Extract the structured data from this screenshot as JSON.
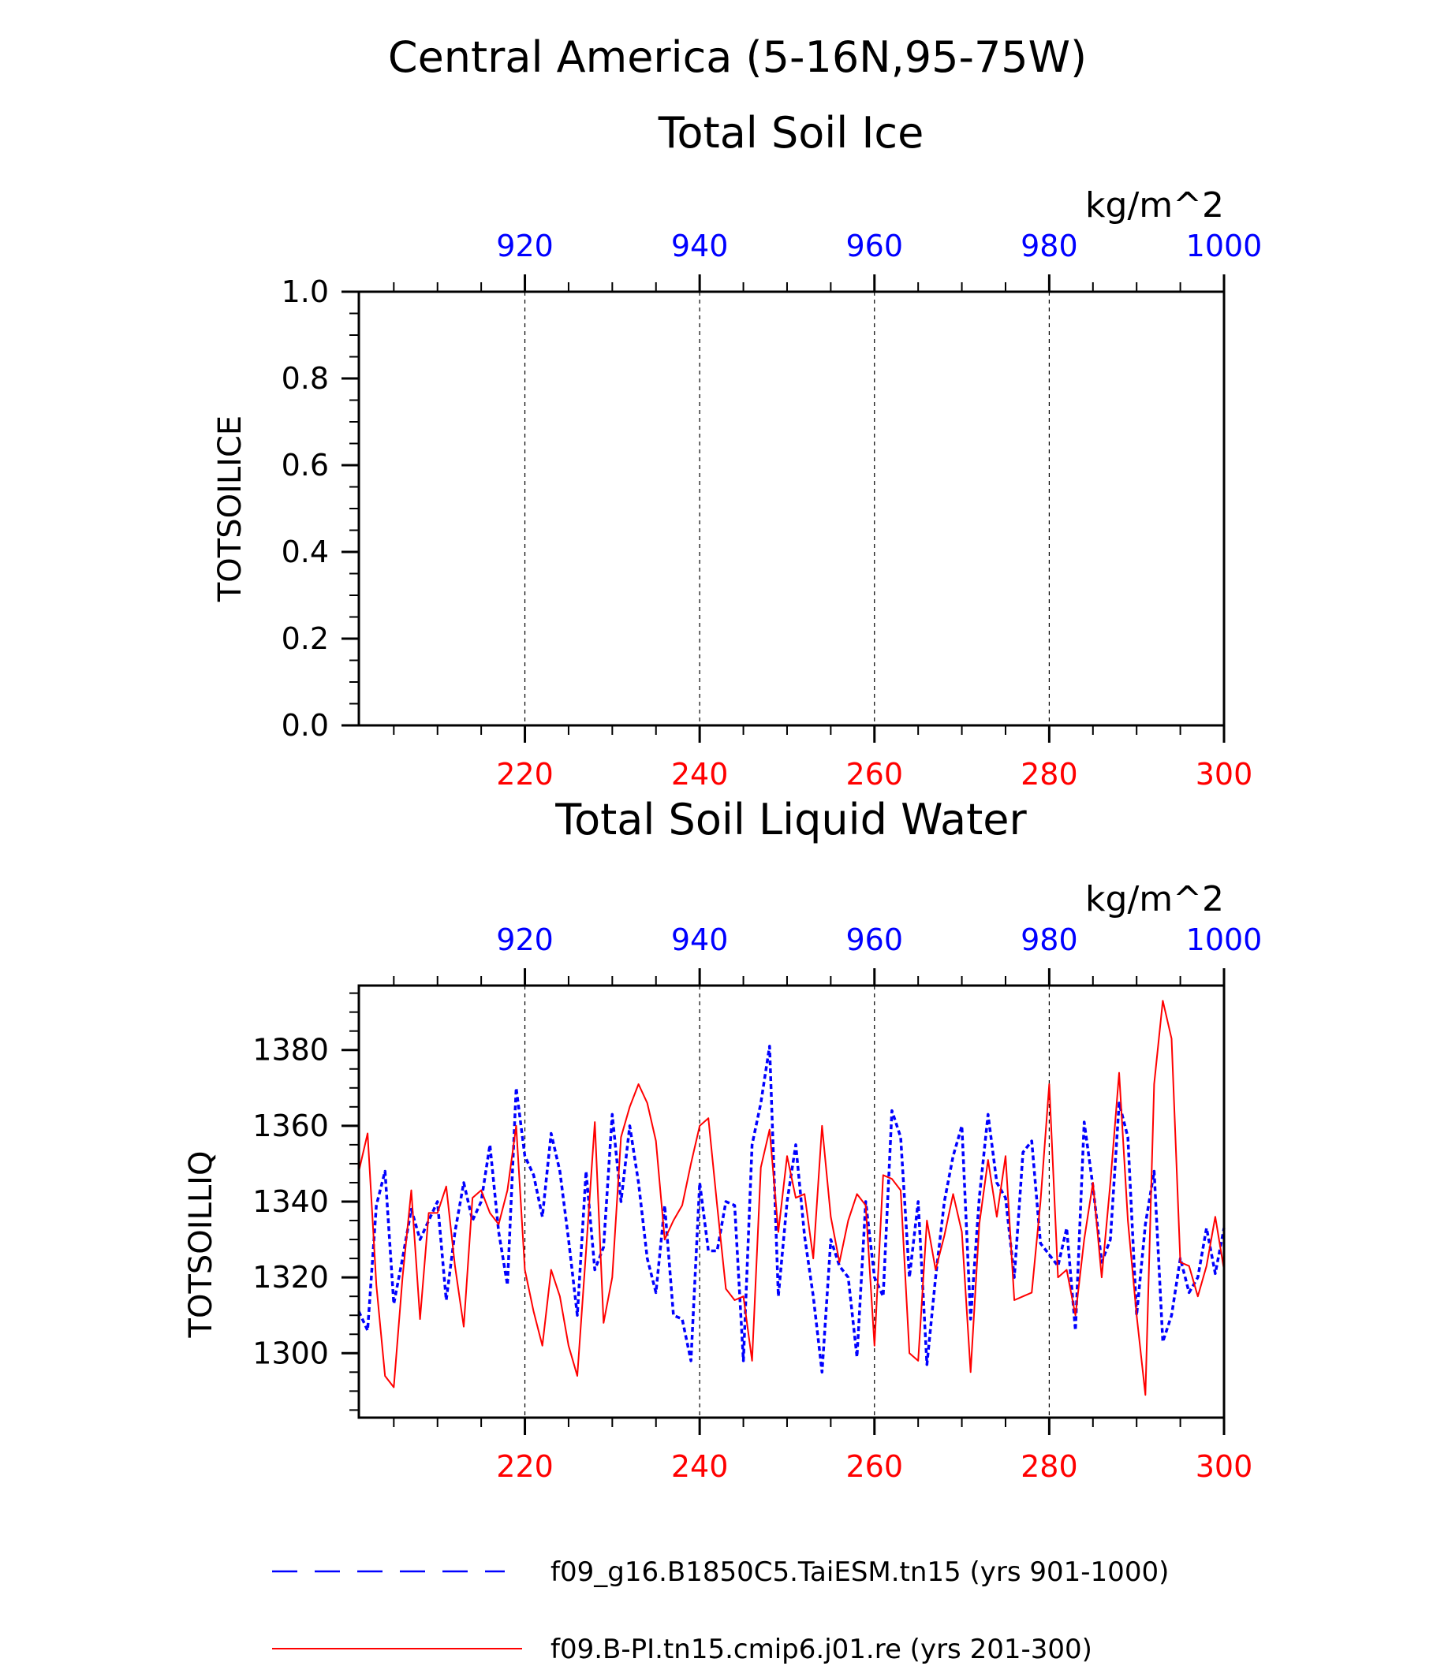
{
  "title": "Central America (5-16N,95-75W)",
  "chart_data": [
    {
      "type": "line",
      "title": "Total Soil Ice",
      "ylabel": "TOTSOILICE",
      "units": "kg/m^2",
      "ylim": [
        0,
        1
      ],
      "yticks": [
        "0.0",
        "0.2",
        "0.4",
        "0.6",
        "0.8",
        "1.0"
      ],
      "bottom_axis": {
        "range": [
          201,
          300
        ],
        "ticks": [
          "220",
          "240",
          "260",
          "280",
          "300"
        ],
        "color": "#ff0000"
      },
      "top_axis": {
        "range": [
          901,
          1000
        ],
        "ticks": [
          "920",
          "940",
          "960",
          "980",
          "1000"
        ],
        "color": "#0000ff"
      },
      "grid": "dashed vertical at major ticks",
      "series": []
    },
    {
      "type": "line",
      "title": "Total Soil Liquid Water",
      "ylabel": "TOTSOILLIQ",
      "units": "kg/m^2",
      "ylim": [
        1283,
        1397
      ],
      "yticks": [
        "1300",
        "1320",
        "1340",
        "1360",
        "1380"
      ],
      "bottom_axis": {
        "range": [
          201,
          300
        ],
        "ticks": [
          "220",
          "240",
          "260",
          "280",
          "300"
        ],
        "color": "#ff0000"
      },
      "top_axis": {
        "range": [
          901,
          1000
        ],
        "ticks": [
          "920",
          "940",
          "960",
          "980",
          "1000"
        ],
        "color": "#0000ff"
      },
      "grid": "dashed vertical at major ticks",
      "series": [
        {
          "name": "f09_g16.B1850C5.TaiESM.tn15 (yrs 901-1000)",
          "color": "#0000ff",
          "style": "dotted",
          "x_start": 901,
          "values": [
            1311,
            1306,
            1339,
            1348,
            1313,
            1325,
            1338,
            1330,
            1335,
            1340,
            1314,
            1332,
            1345,
            1335,
            1340,
            1355,
            1332,
            1318,
            1370,
            1352,
            1347,
            1336,
            1358,
            1348,
            1330,
            1310,
            1348,
            1322,
            1328,
            1363,
            1340,
            1360,
            1345,
            1325,
            1316,
            1339,
            1310,
            1309,
            1298,
            1345,
            1327,
            1327,
            1340,
            1339,
            1298,
            1355,
            1366,
            1381,
            1315,
            1340,
            1355,
            1331,
            1315,
            1295,
            1330,
            1323,
            1320,
            1299,
            1340,
            1320,
            1315,
            1364,
            1357,
            1320,
            1340,
            1297,
            1320,
            1340,
            1352,
            1360,
            1309,
            1341,
            1363,
            1345,
            1341,
            1320,
            1353,
            1356,
            1329,
            1326,
            1323,
            1333,
            1306,
            1361,
            1344,
            1324,
            1330,
            1366,
            1357,
            1310,
            1334,
            1348,
            1303,
            1310,
            1325,
            1316,
            1320,
            1333,
            1321,
            1333
          ]
        },
        {
          "name": "f09.B-PI.tn15.cmip6.j01.re (yrs 201-300)",
          "color": "#ff0000",
          "style": "solid",
          "x_start": 201,
          "values": [
            1348,
            1358,
            1318,
            1294,
            1291,
            1320,
            1343,
            1309,
            1337,
            1337,
            1344,
            1323,
            1307,
            1341,
            1343,
            1337,
            1334,
            1343,
            1360,
            1322,
            1311,
            1302,
            1322,
            1315,
            1302,
            1294,
            1327,
            1361,
            1308,
            1320,
            1357,
            1365,
            1371,
            1366,
            1356,
            1330,
            1335,
            1339,
            1350,
            1360,
            1362,
            1339,
            1317,
            1314,
            1315,
            1298,
            1349,
            1359,
            1332,
            1352,
            1341,
            1342,
            1325,
            1360,
            1336,
            1324,
            1335,
            1342,
            1339,
            1302,
            1347,
            1346,
            1343,
            1300,
            1298,
            1335,
            1322,
            1331,
            1342,
            1332,
            1295,
            1334,
            1351,
            1336,
            1352,
            1314,
            1315,
            1316,
            1340,
            1371,
            1320,
            1322,
            1310,
            1330,
            1345,
            1320,
            1345,
            1374,
            1335,
            1310,
            1289,
            1371,
            1393,
            1383,
            1324,
            1323,
            1315,
            1323,
            1336,
            1322
          ]
        }
      ]
    }
  ]
}
